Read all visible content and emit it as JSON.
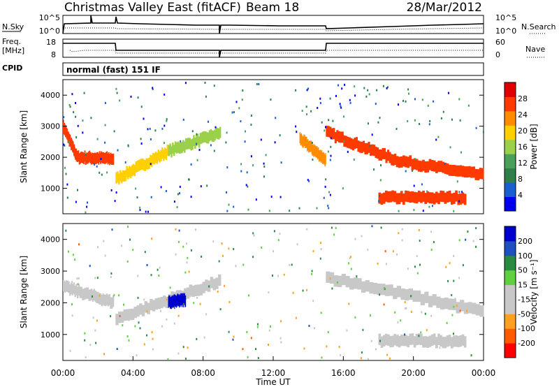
{
  "header": {
    "title": "Christmas Valley East (fitACF)",
    "beam": "Beam 18",
    "date": "28/Mar/2012"
  },
  "meta_panels": {
    "nsky_label": "N.Sky",
    "nsearch_label": "N.Search",
    "nsky_ticks": [
      "10^5",
      "10^0"
    ],
    "nsearch_ticks": [
      "10^5",
      "10^0"
    ],
    "freq_label_line1": "Freq.",
    "freq_label_line2": "[MHz]",
    "freq_ticks": [
      "18",
      "8"
    ],
    "nave_label": "Nave",
    "nave_ticks": [
      "60",
      "0"
    ],
    "cpid_label": "CPID",
    "cpid_value": "normal (fast) 151 IF"
  },
  "colors": {
    "power_scale": [
      "#0000ee",
      "#1a5fd0",
      "#2f7f4a",
      "#4aa05a",
      "#9bd04a",
      "#ffd000",
      "#ff8c00",
      "#ff3a00",
      "#e00000"
    ],
    "velocity_scale": [
      "#ff0000",
      "#ff5a00",
      "#ffa020",
      "#c8c8c8",
      "#c8c8c8",
      "#60d040",
      "#2a8a40",
      "#2050c0",
      "#0000cc"
    ]
  },
  "chart_data": [
    {
      "type": "heatmap",
      "title": "",
      "xlabel": "Time UT",
      "ylabel": "Slant Range [km]",
      "x_ticks": [
        "00:00",
        "04:00",
        "08:00",
        "12:00",
        "16:00",
        "20:00",
        "00:00"
      ],
      "xlim_hours": [
        0,
        24
      ],
      "y_ticks": [
        "1000",
        "2000",
        "3000",
        "4000"
      ],
      "ylim_km": [
        180,
        4500
      ],
      "colorbar_label": "Power [dB]",
      "colorbar_ticks": [
        "4",
        "8",
        "12",
        "16",
        "20",
        "24",
        "28"
      ],
      "colorbar_range": [
        0,
        32
      ],
      "bands": [
        {
          "t_start": 0.0,
          "t_end": 0.8,
          "range_start": 3000,
          "range_end": 2000,
          "power": 28
        },
        {
          "t_start": 0.8,
          "t_end": 2.9,
          "range_start": 2000,
          "range_end": 1950,
          "power": 28
        },
        {
          "t_start": 3.0,
          "t_end": 6.0,
          "range_start": 1300,
          "range_end": 2200,
          "power": 20
        },
        {
          "t_start": 6.0,
          "t_end": 9.0,
          "range_start": 2200,
          "range_end": 2800,
          "power": 16
        },
        {
          "t_start": 13.5,
          "t_end": 15.0,
          "range_start": 2600,
          "range_end": 1900,
          "power": 24
        },
        {
          "t_start": 15.0,
          "t_end": 19.0,
          "range_start": 2800,
          "range_end": 1900,
          "power": 28
        },
        {
          "t_start": 19.0,
          "t_end": 24.0,
          "range_start": 1900,
          "range_end": 1400,
          "power": 28
        },
        {
          "t_start": 18.0,
          "t_end": 23.0,
          "range_start": 700,
          "range_end": 700,
          "power": 28
        }
      ]
    },
    {
      "type": "heatmap",
      "title": "",
      "xlabel": "Time UT",
      "ylabel": "Slant Range [km]",
      "x_ticks": [
        "00:00",
        "04:00",
        "08:00",
        "12:00",
        "16:00",
        "20:00",
        "00:00"
      ],
      "xlim_hours": [
        0,
        24
      ],
      "y_ticks": [
        "1000",
        "2000",
        "3000",
        "4000"
      ],
      "ylim_km": [
        180,
        4500
      ],
      "colorbar_label": "Velocity [m s⁻¹]",
      "colorbar_ticks": [
        "-200",
        "-100",
        "-50",
        "-15",
        "15",
        "50",
        "100",
        "200"
      ],
      "colorbar_range": [
        -250,
        250
      ],
      "bands": [
        {
          "t_start": 0.0,
          "t_end": 2.9,
          "range_start": 2500,
          "range_end": 2000,
          "velocity": 0
        },
        {
          "t_start": 3.0,
          "t_end": 9.0,
          "range_start": 1500,
          "range_end": 2700,
          "velocity": -40
        },
        {
          "t_start": 6.0,
          "t_end": 7.0,
          "range_start": 2000,
          "range_end": 2100,
          "velocity": 200
        },
        {
          "t_start": 15.0,
          "t_end": 24.0,
          "range_start": 2800,
          "range_end": 1700,
          "velocity": 0
        },
        {
          "t_start": 18.0,
          "t_end": 23.0,
          "range_start": 800,
          "range_end": 800,
          "velocity": 0
        }
      ]
    }
  ]
}
